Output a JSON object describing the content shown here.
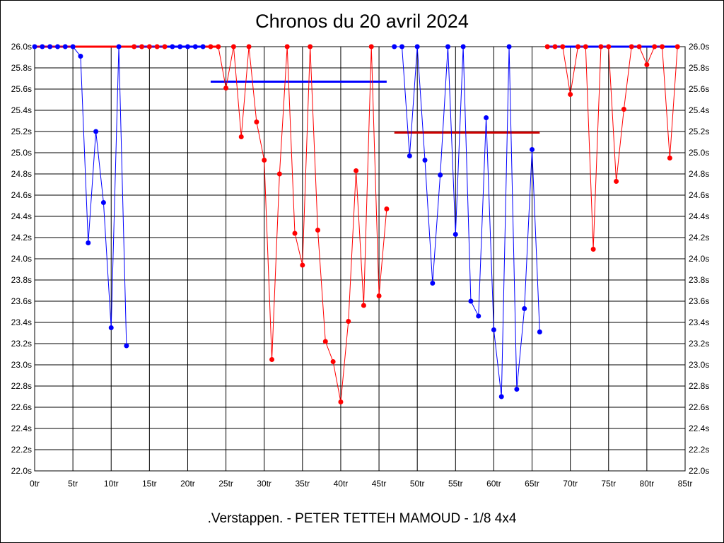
{
  "chart_data": {
    "type": "line",
    "title": "Chronos du 20 avril 2024",
    "footer": ".Verstappen. - PETER TETTEH MAMOUD - 1/8 4x4",
    "xlabel": "",
    "ylabel": "",
    "xlim": [
      0,
      85
    ],
    "ylim": [
      22.0,
      26.0
    ],
    "grid": true,
    "x_ticks": [
      "0tr",
      "5tr",
      "10tr",
      "15tr",
      "20tr",
      "25tr",
      "30tr",
      "35tr",
      "40tr",
      "45tr",
      "50tr",
      "55tr",
      "60tr",
      "65tr",
      "70tr",
      "75tr",
      "80tr",
      "85tr"
    ],
    "x_tick_values": [
      0,
      5,
      10,
      15,
      20,
      25,
      30,
      35,
      40,
      45,
      50,
      55,
      60,
      65,
      70,
      75,
      80,
      85
    ],
    "y_ticks": [
      "22.0s",
      "22.2s",
      "22.4s",
      "22.6s",
      "22.8s",
      "23.0s",
      "23.2s",
      "23.4s",
      "23.6s",
      "23.8s",
      "24.0s",
      "24.2s",
      "24.4s",
      "24.6s",
      "24.8s",
      "25.0s",
      "25.2s",
      "25.4s",
      "25.6s",
      "25.8s",
      "26.0s"
    ],
    "y_tick_values": [
      22.0,
      22.2,
      22.4,
      22.6,
      22.8,
      23.0,
      23.2,
      23.4,
      23.6,
      23.8,
      24.0,
      24.2,
      24.4,
      24.6,
      24.8,
      25.0,
      25.2,
      25.4,
      25.6,
      25.8,
      26.0
    ],
    "series": [
      {
        "name": "red",
        "color": "#ff0000",
        "flat": [
          [
            0,
            24
          ],
          [
            67,
            84
          ]
        ],
        "runs": [
          {
            "start": 13,
            "values": [
              26.0,
              26.0,
              26.0,
              26.0,
              26.0
            ]
          },
          {
            "start": 23,
            "values": [
              26.0,
              26.0,
              25.61,
              26.0,
              25.15,
              26.0,
              25.29,
              24.93,
              23.05,
              24.8,
              26.0,
              24.24,
              23.94,
              26.0,
              24.27,
              23.22,
              23.03,
              22.65,
              23.41,
              24.83,
              23.56,
              26.0,
              23.65,
              24.47
            ]
          },
          {
            "start": 67,
            "values": [
              26.0,
              26.0,
              26.0,
              25.55,
              26.0,
              26.0,
              24.09,
              26.0,
              26.0,
              24.73,
              25.41,
              26.0,
              26.0,
              25.83,
              26.0,
              26.0,
              24.95,
              26.0
            ]
          }
        ],
        "average": {
          "value": 25.19,
          "from": 47,
          "to": 66
        }
      },
      {
        "name": "blue",
        "color": "#0000ff",
        "flat": [
          [
            13,
            22
          ],
          [
            67,
            84
          ]
        ],
        "runs": [
          {
            "start": 0,
            "values": [
              26.0,
              26.0,
              26.0,
              26.0,
              26.0,
              26.0,
              25.91,
              24.15,
              25.2,
              24.53,
              23.35,
              26.0,
              23.18
            ]
          },
          {
            "start": 18,
            "values": [
              26.0,
              26.0,
              26.0,
              26.0,
              26.0
            ]
          },
          {
            "start": 47,
            "values": [
              26.0,
              26.0,
              24.97,
              26.0,
              24.93,
              23.77,
              24.79,
              26.0,
              24.23,
              26.0,
              23.6,
              23.46,
              25.33,
              23.33,
              22.7,
              26.0,
              22.77,
              23.53,
              25.03,
              23.31
            ]
          }
        ],
        "average": {
          "value": 25.67,
          "from": 23,
          "to": 46
        }
      }
    ]
  }
}
